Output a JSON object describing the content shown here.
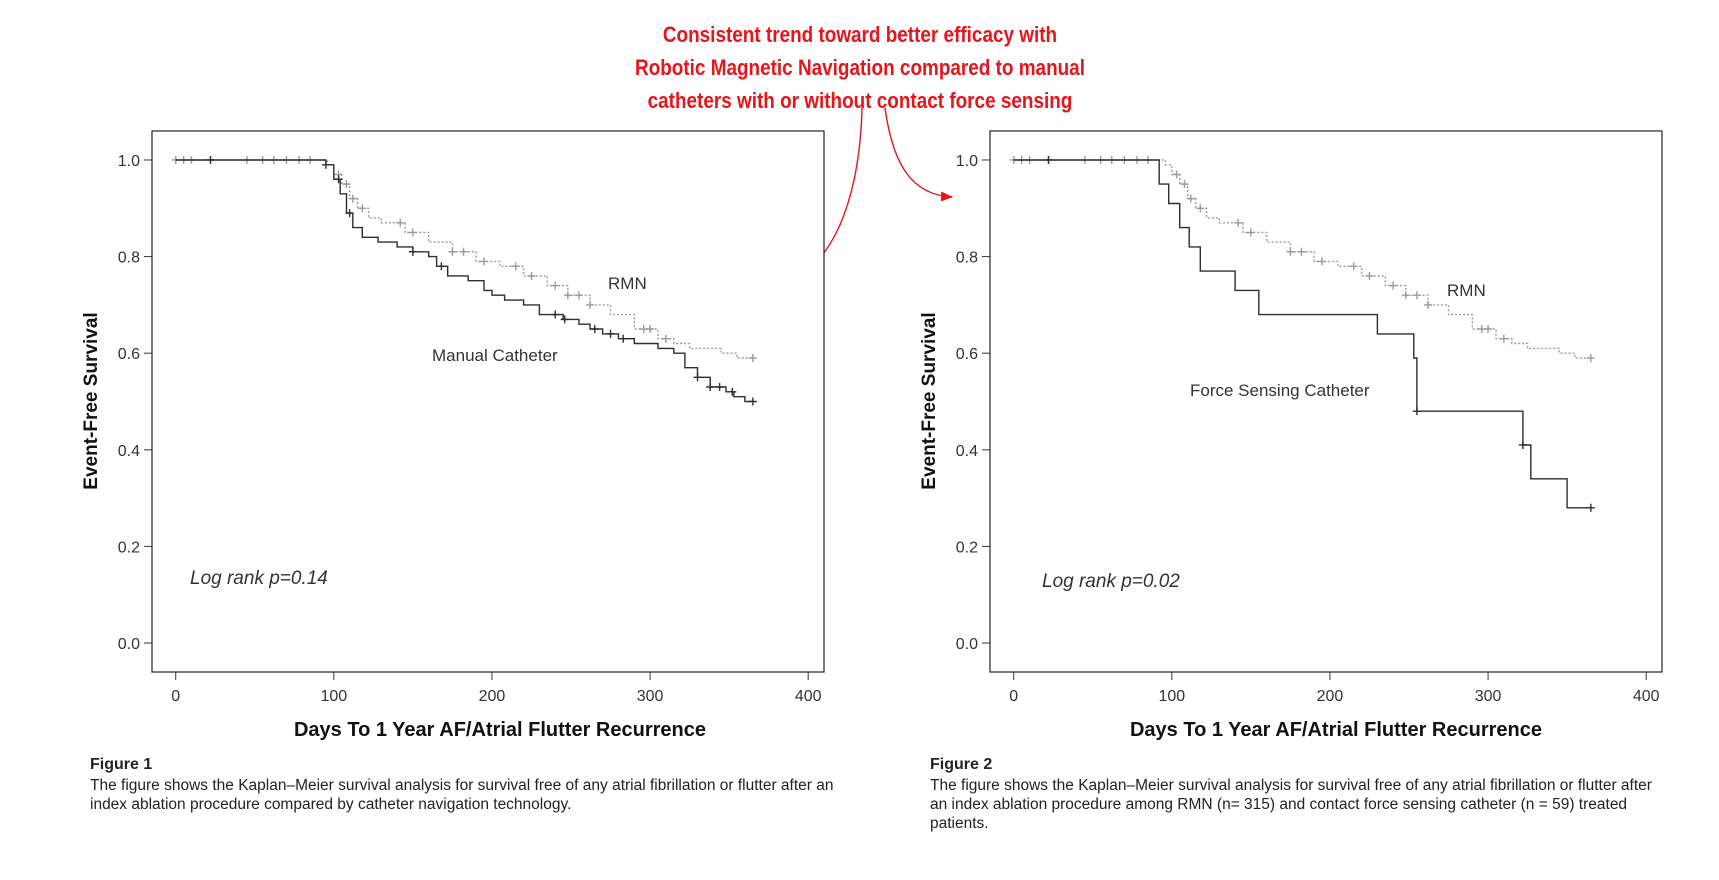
{
  "annotation": {
    "lines": [
      "Consistent trend toward better efficacy with",
      "Robotic Magnetic Navigation compared to manual",
      "catheters with or without contact force sensing"
    ],
    "color": "#e8141c"
  },
  "figures": [
    {
      "caption_title": "Figure 1",
      "caption_text": "The figure shows the Kaplan–Meier survival analysis for survival free of any atrial fibrillation or flutter after an index ablation procedure compared by catheter navigation technology."
    },
    {
      "caption_title": "Figure 2",
      "caption_text": "The figure shows the Kaplan–Meier survival analysis for survival free of any atrial fibrillation or flutter after an index ablation procedure among RMN (n= 315) and contact force sensing catheter (n = 59) treated patients."
    }
  ],
  "chart_data": [
    {
      "type": "line",
      "step": true,
      "xlabel": "Days To 1 Year AF/Atrial Flutter Recurrence",
      "ylabel": "Event-Free Survival",
      "xlim": [
        -15,
        410
      ],
      "ylim": [
        -0.06,
        1.06
      ],
      "x_ticks": [
        0,
        100,
        200,
        300,
        400
      ],
      "x_tick_labels": [
        "0",
        "100",
        "200",
        "300",
        "400"
      ],
      "y_ticks": [
        0.0,
        0.2,
        0.4,
        0.6,
        0.8,
        1.0
      ],
      "y_tick_labels": [
        "0.0",
        "0.2",
        "0.4",
        "0.6",
        "0.8",
        "1.0"
      ],
      "annotation_text": "Log rank p=0.14",
      "series": [
        {
          "name": "RMN",
          "color": "#9a9a9a",
          "dash": "2,2",
          "points": [
            [
              0,
              1.0
            ],
            [
              92,
              1.0
            ],
            [
              96,
              0.99
            ],
            [
              100,
              0.97
            ],
            [
              105,
              0.95
            ],
            [
              110,
              0.92
            ],
            [
              115,
              0.9
            ],
            [
              122,
              0.88
            ],
            [
              130,
              0.87
            ],
            [
              145,
              0.85
            ],
            [
              160,
              0.83
            ],
            [
              175,
              0.81
            ],
            [
              190,
              0.79
            ],
            [
              205,
              0.78
            ],
            [
              220,
              0.76
            ],
            [
              235,
              0.74
            ],
            [
              248,
              0.72
            ],
            [
              262,
              0.7
            ],
            [
              275,
              0.68
            ],
            [
              290,
              0.65
            ],
            [
              305,
              0.63
            ],
            [
              315,
              0.62
            ],
            [
              325,
              0.61
            ],
            [
              345,
              0.6
            ],
            [
              355,
              0.59
            ],
            [
              365,
              0.59
            ]
          ],
          "censor": [
            0,
            5,
            10,
            22,
            45,
            55,
            62,
            70,
            78,
            85,
            103,
            108,
            112,
            118,
            142,
            150,
            175,
            182,
            195,
            215,
            225,
            240,
            248,
            255,
            262,
            296,
            300,
            310,
            365
          ]
        },
        {
          "name": "Manual Catheter",
          "color": "#2e2e2e",
          "dash": "",
          "points": [
            [
              0,
              1.0
            ],
            [
              90,
              1.0
            ],
            [
              95,
              0.99
            ],
            [
              100,
              0.96
            ],
            [
              104,
              0.93
            ],
            [
              108,
              0.89
            ],
            [
              112,
              0.86
            ],
            [
              118,
              0.84
            ],
            [
              128,
              0.83
            ],
            [
              140,
              0.82
            ],
            [
              150,
              0.81
            ],
            [
              160,
              0.8
            ],
            [
              165,
              0.78
            ],
            [
              172,
              0.76
            ],
            [
              185,
              0.75
            ],
            [
              195,
              0.73
            ],
            [
              200,
              0.72
            ],
            [
              208,
              0.71
            ],
            [
              220,
              0.7
            ],
            [
              230,
              0.68
            ],
            [
              245,
              0.67
            ],
            [
              255,
              0.66
            ],
            [
              262,
              0.65
            ],
            [
              270,
              0.64
            ],
            [
              280,
              0.63
            ],
            [
              290,
              0.62
            ],
            [
              305,
              0.61
            ],
            [
              315,
              0.6
            ],
            [
              322,
              0.57
            ],
            [
              330,
              0.55
            ],
            [
              338,
              0.53
            ],
            [
              348,
              0.52
            ],
            [
              353,
              0.51
            ],
            [
              360,
              0.5
            ],
            [
              365,
              0.5
            ]
          ],
          "censor": [
            22,
            95,
            103,
            110,
            150,
            168,
            240,
            246,
            265,
            275,
            283,
            330,
            338,
            344,
            352,
            365
          ]
        }
      ],
      "series_labels": [
        "RMN",
        "Manual Catheter"
      ]
    },
    {
      "type": "line",
      "step": true,
      "xlabel": "Days To 1 Year AF/Atrial Flutter Recurrence",
      "ylabel": "Event-Free Survival",
      "xlim": [
        -15,
        410
      ],
      "ylim": [
        -0.06,
        1.06
      ],
      "x_ticks": [
        0,
        100,
        200,
        300,
        400
      ],
      "x_tick_labels": [
        "0",
        "100",
        "200",
        "300",
        "400"
      ],
      "y_ticks": [
        0.0,
        0.2,
        0.4,
        0.6,
        0.8,
        1.0
      ],
      "y_tick_labels": [
        "0.0",
        "0.2",
        "0.4",
        "0.6",
        "0.8",
        "1.0"
      ],
      "annotation_text": "Log rank p=0.02",
      "series": [
        {
          "name": "RMN",
          "color": "#9a9a9a",
          "dash": "2,2",
          "points": [
            [
              0,
              1.0
            ],
            [
              92,
              1.0
            ],
            [
              96,
              0.99
            ],
            [
              100,
              0.97
            ],
            [
              105,
              0.95
            ],
            [
              110,
              0.92
            ],
            [
              115,
              0.9
            ],
            [
              122,
              0.88
            ],
            [
              130,
              0.87
            ],
            [
              145,
              0.85
            ],
            [
              160,
              0.83
            ],
            [
              175,
              0.81
            ],
            [
              190,
              0.79
            ],
            [
              205,
              0.78
            ],
            [
              220,
              0.76
            ],
            [
              235,
              0.74
            ],
            [
              248,
              0.72
            ],
            [
              262,
              0.7
            ],
            [
              275,
              0.68
            ],
            [
              290,
              0.65
            ],
            [
              305,
              0.63
            ],
            [
              315,
              0.62
            ],
            [
              325,
              0.61
            ],
            [
              345,
              0.6
            ],
            [
              355,
              0.59
            ],
            [
              365,
              0.59
            ]
          ],
          "censor": [
            0,
            5,
            10,
            22,
            45,
            55,
            62,
            70,
            78,
            85,
            103,
            108,
            112,
            118,
            142,
            150,
            175,
            182,
            195,
            215,
            225,
            240,
            248,
            255,
            262,
            296,
            300,
            310,
            365
          ]
        },
        {
          "name": "Force Sensing Catheter",
          "color": "#2e2e2e",
          "dash": "",
          "points": [
            [
              0,
              1.0
            ],
            [
              92,
              1.0
            ],
            [
              92,
              0.95
            ],
            [
              98,
              0.95
            ],
            [
              98,
              0.91
            ],
            [
              105,
              0.91
            ],
            [
              105,
              0.86
            ],
            [
              111,
              0.86
            ],
            [
              111,
              0.82
            ],
            [
              118,
              0.82
            ],
            [
              118,
              0.77
            ],
            [
              140,
              0.77
            ],
            [
              140,
              0.73
            ],
            [
              155,
              0.73
            ],
            [
              155,
              0.68
            ],
            [
              230,
              0.68
            ],
            [
              230,
              0.64
            ],
            [
              253,
              0.64
            ],
            [
              253,
              0.59
            ],
            [
              255,
              0.59
            ],
            [
              255,
              0.48
            ],
            [
              322,
              0.48
            ],
            [
              322,
              0.41
            ],
            [
              327,
              0.41
            ],
            [
              327,
              0.34
            ],
            [
              350,
              0.34
            ],
            [
              350,
              0.28
            ],
            [
              365,
              0.28
            ]
          ],
          "censor": [
            22,
            255,
            322,
            365
          ]
        }
      ],
      "series_labels": [
        "RMN",
        "Force Sensing Catheter"
      ]
    }
  ]
}
